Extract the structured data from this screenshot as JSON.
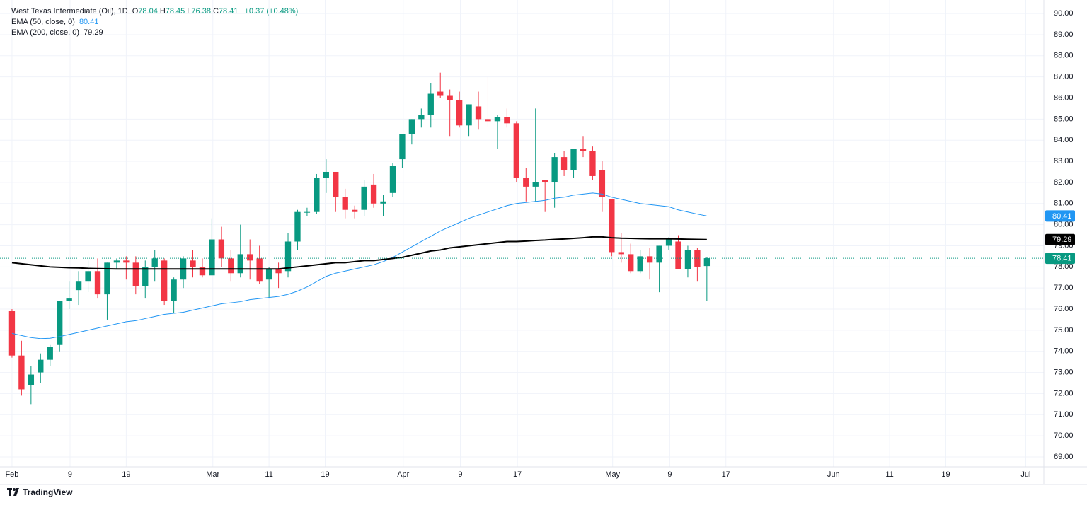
{
  "header": {
    "title": "West Texas Intermediate (Oil), 1D",
    "legend": [
      {
        "key": "O",
        "value": "78.04"
      },
      {
        "key": "H",
        "value": "78.45"
      },
      {
        "key": "L",
        "value": "76.38"
      },
      {
        "key": "C",
        "value": "78.41"
      }
    ],
    "change": "+0.37 (+0.48%)"
  },
  "brand": "TradingView",
  "chart_data": {
    "type": "candlestick",
    "up_color": "#089981",
    "down_color": "#f23645",
    "open": [
      75.9,
      73.8,
      72.4,
      73.0,
      73.6,
      74.3,
      76.4,
      76.9,
      77.3,
      77.8,
      76.7,
      78.2,
      78.3,
      78.2,
      77.1,
      78.0,
      78.3,
      76.4,
      77.4,
      78.3,
      78.0,
      77.6,
      79.3,
      78.4,
      77.7,
      78.6,
      78.4,
      77.4,
      77.9,
      77.8,
      79.2,
      80.6,
      80.6,
      82.2,
      82.5,
      81.3,
      80.7,
      80.7,
      81.9,
      81.0,
      81.5,
      83.1,
      84.3,
      85.0,
      85.2,
      86.3,
      86.1,
      85.9,
      84.7,
      85.6,
      85.0,
      84.9,
      85.1,
      84.8,
      82.2,
      81.8,
      82.1,
      82.0,
      83.2,
      82.6,
      83.6,
      83.5,
      82.6,
      81.2,
      78.7,
      78.6,
      77.8,
      78.5,
      78.2,
      79.0,
      79.2,
      77.9,
      78.8,
      78.04
    ],
    "high": [
      76.0,
      74.5,
      73.3,
      73.9,
      74.3,
      76.4,
      77.3,
      77.8,
      78.3,
      78.4,
      78.2,
      78.4,
      78.5,
      78.5,
      78.3,
      78.8,
      78.4,
      77.5,
      78.5,
      78.8,
      78.4,
      80.3,
      79.9,
      78.8,
      80.0,
      79.3,
      79.0,
      78.0,
      78.2,
      79.6,
      80.7,
      80.8,
      82.4,
      83.1,
      82.5,
      81.7,
      80.9,
      82.1,
      82.4,
      81.4,
      82.9,
      84.3,
      85.0,
      85.5,
      86.7,
      87.2,
      86.4,
      86.3,
      85.7,
      86.3,
      87.0,
      85.2,
      85.5,
      84.9,
      82.7,
      85.5,
      82.1,
      83.4,
      83.5,
      83.6,
      84.2,
      83.7,
      83.0,
      81.2,
      79.6,
      79.1,
      78.8,
      78.9,
      79.0,
      79.4,
      79.5,
      79.0,
      78.9,
      78.45
    ],
    "low": [
      73.7,
      71.9,
      71.5,
      72.5,
      73.3,
      74.0,
      76.0,
      76.2,
      76.8,
      76.5,
      75.5,
      77.9,
      77.4,
      76.7,
      76.5,
      77.3,
      76.2,
      75.8,
      77.0,
      77.5,
      77.5,
      77.6,
      78.0,
      77.3,
      77.5,
      77.4,
      77.2,
      76.5,
      77.0,
      77.5,
      78.8,
      80.4,
      80.5,
      81.5,
      80.6,
      80.3,
      80.3,
      80.4,
      80.8,
      80.4,
      81.3,
      82.7,
      83.8,
      84.6,
      84.6,
      86.0,
      84.2,
      84.6,
      84.2,
      84.5,
      84.6,
      83.6,
      84.6,
      82.0,
      81.1,
      81.1,
      80.6,
      80.8,
      82.3,
      82.2,
      83.2,
      82.1,
      80.6,
      78.5,
      78.2,
      77.7,
      77.7,
      77.4,
      76.8,
      78.8,
      77.9,
      77.5,
      77.3,
      76.38
    ],
    "close": [
      73.8,
      72.2,
      72.9,
      73.6,
      74.2,
      76.4,
      76.5,
      77.3,
      77.8,
      76.7,
      78.2,
      78.3,
      78.2,
      77.1,
      78.0,
      78.4,
      76.4,
      77.4,
      78.4,
      78.0,
      77.6,
      79.3,
      78.4,
      77.7,
      78.6,
      78.3,
      77.3,
      77.9,
      77.7,
      79.2,
      80.6,
      80.6,
      82.2,
      82.5,
      81.3,
      80.7,
      80.6,
      81.8,
      81.0,
      81.1,
      82.8,
      84.3,
      85.0,
      85.2,
      86.2,
      86.1,
      85.9,
      84.7,
      85.7,
      85.0,
      84.9,
      85.1,
      84.8,
      82.2,
      81.8,
      82.0,
      82.0,
      83.2,
      82.6,
      83.6,
      83.5,
      82.3,
      81.3,
      78.7,
      78.6,
      77.8,
      78.5,
      78.2,
      79.0,
      79.3,
      77.9,
      78.8,
      78.0,
      78.41
    ],
    "close_label": "78.41",
    "last_line_color": "#089981",
    "series": [
      {
        "name": "EMA (50, close, 0)",
        "color": "#2196f3",
        "width": 1,
        "last_label": "80.41",
        "values": [
          74.85,
          74.75,
          74.65,
          74.6,
          74.62,
          74.7,
          74.8,
          74.9,
          75.0,
          75.1,
          75.2,
          75.3,
          75.4,
          75.45,
          75.55,
          75.65,
          75.75,
          75.8,
          75.85,
          75.95,
          76.05,
          76.15,
          76.25,
          76.3,
          76.35,
          76.45,
          76.5,
          76.55,
          76.6,
          76.7,
          76.85,
          77.05,
          77.3,
          77.55,
          77.7,
          77.8,
          77.9,
          78.0,
          78.1,
          78.25,
          78.45,
          78.7,
          78.95,
          79.2,
          79.45,
          79.7,
          79.9,
          80.1,
          80.3,
          80.45,
          80.6,
          80.75,
          80.9,
          81.0,
          81.05,
          81.1,
          81.15,
          81.25,
          81.3,
          81.4,
          81.45,
          81.5,
          81.45,
          81.3,
          81.2,
          81.1,
          81.0,
          80.95,
          80.9,
          80.85,
          80.7,
          80.6,
          80.5,
          80.41
        ]
      },
      {
        "name": "EMA (200, close, 0)",
        "color": "#000000",
        "width": 2,
        "last_label": "79.29",
        "values": [
          78.2,
          78.15,
          78.1,
          78.05,
          78.0,
          77.98,
          77.96,
          77.95,
          77.93,
          77.92,
          77.91,
          77.9,
          77.9,
          77.9,
          77.9,
          77.9,
          77.9,
          77.9,
          77.9,
          77.9,
          77.9,
          77.9,
          77.9,
          77.9,
          77.9,
          77.9,
          77.9,
          77.9,
          77.9,
          77.95,
          78.0,
          78.05,
          78.1,
          78.15,
          78.2,
          78.2,
          78.25,
          78.3,
          78.3,
          78.35,
          78.4,
          78.45,
          78.55,
          78.65,
          78.75,
          78.8,
          78.9,
          78.95,
          79.0,
          79.05,
          79.1,
          79.15,
          79.2,
          79.2,
          79.22,
          79.25,
          79.27,
          79.3,
          79.32,
          79.35,
          79.38,
          79.42,
          79.42,
          79.38,
          79.36,
          79.35,
          79.34,
          79.33,
          79.33,
          79.33,
          79.32,
          79.31,
          79.3,
          79.29
        ]
      }
    ],
    "ylim": [
      68.53,
      90.64
    ],
    "yticks": [
      {
        "value": 69,
        "label": "69.00"
      },
      {
        "value": 70,
        "label": "70.00"
      },
      {
        "value": 71,
        "label": "71.00"
      },
      {
        "value": 72,
        "label": "72.00"
      },
      {
        "value": 73,
        "label": "73.00"
      },
      {
        "value": 74,
        "label": "74.00"
      },
      {
        "value": 75,
        "label": "75.00"
      },
      {
        "value": 76,
        "label": "76.00"
      },
      {
        "value": 77,
        "label": "77.00"
      },
      {
        "value": 78,
        "label": "78.00"
      },
      {
        "value": 79,
        "label": "79.00"
      },
      {
        "value": 80,
        "label": "80.00"
      },
      {
        "value": 81,
        "label": "81.00"
      },
      {
        "value": 82,
        "label": "82.00"
      },
      {
        "value": 83,
        "label": "83.00"
      },
      {
        "value": 84,
        "label": "84.00"
      },
      {
        "value": 85,
        "label": "85.00"
      },
      {
        "value": 86,
        "label": "86.00"
      },
      {
        "value": 87,
        "label": "87.00"
      },
      {
        "value": 88,
        "label": "88.00"
      },
      {
        "value": 89,
        "label": "89.00"
      },
      {
        "value": 90,
        "label": "90.00"
      }
    ],
    "xlim": [
      -1.26,
      108.4
    ],
    "xticks": [
      {
        "value": 0,
        "label": "Feb"
      },
      {
        "value": 6.1,
        "label": "9"
      },
      {
        "value": 12,
        "label": "19"
      },
      {
        "value": 21.1,
        "label": "Mar"
      },
      {
        "value": 27,
        "label": "11"
      },
      {
        "value": 32.9,
        "label": "19"
      },
      {
        "value": 41.1,
        "label": "Apr"
      },
      {
        "value": 47.1,
        "label": "9"
      },
      {
        "value": 53.1,
        "label": "17"
      },
      {
        "value": 63.1,
        "label": "May"
      },
      {
        "value": 69.1,
        "label": "9"
      },
      {
        "value": 75,
        "label": "17"
      },
      {
        "value": 86.3,
        "label": "Jun"
      },
      {
        "value": 92.2,
        "label": "11"
      },
      {
        "value": 98.1,
        "label": "19"
      },
      {
        "value": 106.5,
        "label": "Jul"
      }
    ],
    "grid": true
  }
}
